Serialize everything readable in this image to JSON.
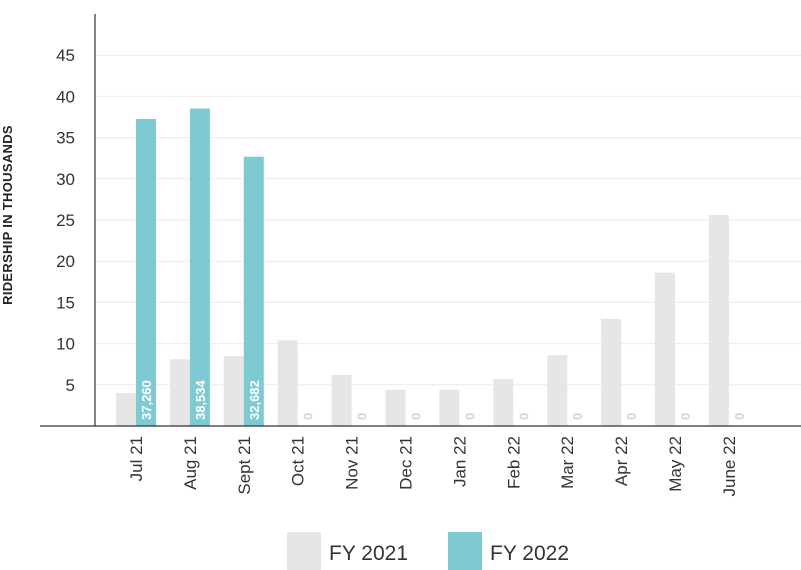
{
  "chart_data": {
    "type": "bar",
    "title": "",
    "xlabel": "",
    "ylabel": "RIDERSHIP IN THOUSANDS",
    "ylim": [
      0,
      50
    ],
    "yticks": [
      5,
      10,
      15,
      20,
      25,
      30,
      35,
      40,
      45
    ],
    "grid": true,
    "legend_position": "bottom",
    "categories": [
      "Jul 21",
      "Aug 21",
      "Sept 21",
      "Oct 21",
      "Nov 21",
      "Dec 21",
      "Jan 22",
      "Feb 22",
      "Mar 22",
      "Apr 22",
      "May 22",
      "June 22"
    ],
    "series": [
      {
        "name": "FY 2021",
        "color": "#e6e6e6",
        "values": [
          4.0,
          8.1,
          8.5,
          10.4,
          6.2,
          4.4,
          4.4,
          5.7,
          8.6,
          13.0,
          18.6,
          25.6
        ]
      },
      {
        "name": "FY 2022",
        "color": "#7ecad3",
        "values": [
          37.26,
          38.534,
          32.682,
          0,
          0,
          0,
          0,
          0,
          0,
          0,
          0,
          0
        ],
        "labels": [
          "37,260",
          "38,534",
          "32,682",
          "0",
          "0",
          "0",
          "0",
          "0",
          "0",
          "0",
          "0",
          "0"
        ]
      }
    ]
  }
}
